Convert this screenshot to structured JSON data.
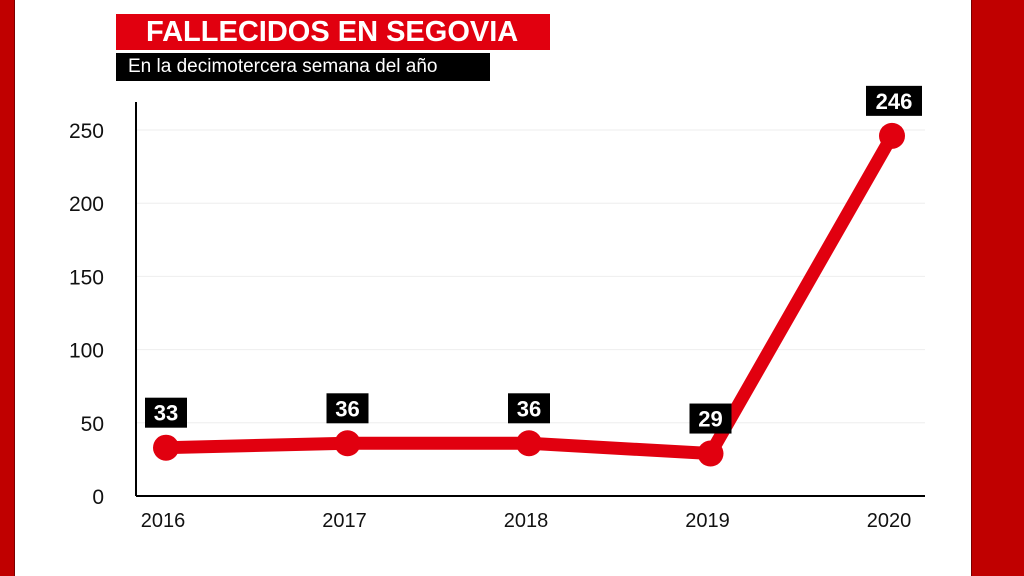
{
  "header": {
    "title": "FALLECIDOS EN SEGOVIA",
    "subtitle": "En la decimotercera semana del año"
  },
  "colors": {
    "frame": "#c00000",
    "title_bg": "#e1000f",
    "line": "#e1000f",
    "label_bg": "#000000",
    "label_text": "#ffffff",
    "grid": "#eeeeee",
    "axis": "#000000"
  },
  "chart_data": {
    "type": "line",
    "title": "FALLECIDOS EN SEGOVIA",
    "subtitle": "En la decimotercera semana del año",
    "categories": [
      "2016",
      "2017",
      "2018",
      "2019",
      "2020"
    ],
    "series": [
      {
        "values": [
          33,
          36,
          36,
          29,
          246
        ]
      }
    ],
    "data_labels": [
      "33",
      "36",
      "36",
      "29",
      "246"
    ],
    "ylim": [
      0,
      250
    ],
    "yticks": [
      0,
      50,
      100,
      150,
      200,
      250
    ],
    "ytick_labels": [
      "0",
      "50",
      "100",
      "150",
      "200",
      "250"
    ],
    "grid": true,
    "legend": "none"
  }
}
